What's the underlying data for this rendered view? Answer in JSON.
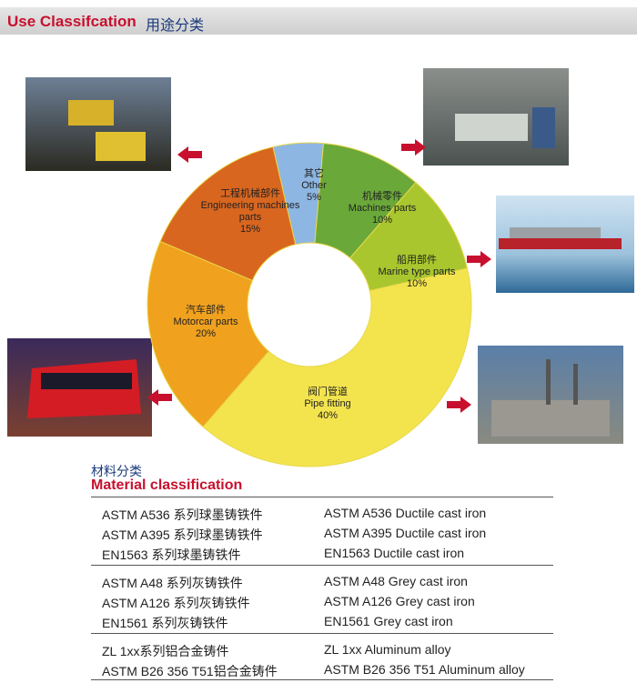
{
  "header": {
    "title_en": "Use Classifcation",
    "title_cn": "用途分类"
  },
  "chart_data": {
    "type": "pie",
    "categories": [
      "Other",
      "Machines parts",
      "Marine type parts",
      "Pipe fitting",
      "Motorcar parts",
      "Engineering machines parts"
    ],
    "categories_cn": [
      "其它",
      "机械零件",
      "船用部件",
      "阀门管道",
      "汽车部件",
      "工程机械部件"
    ],
    "values": [
      5,
      10,
      10,
      40,
      20,
      15
    ],
    "value_labels": [
      "5%",
      "10%",
      "10%",
      "40%",
      "20%",
      "15%"
    ],
    "colors": [
      "#8db6e2",
      "#6ba83a",
      "#a9c62e",
      "#f3e44e",
      "#f0a11e",
      "#d9661f"
    ]
  },
  "materials": {
    "title_cn": "材料分类",
    "title_en": "Material classification",
    "groups": [
      [
        [
          "ASTM A536 系列球墨铸铁件",
          "ASTM A536 Ductile cast iron"
        ],
        [
          "ASTM A395 系列球墨铸铁件",
          "ASTM A395 Ductile cast iron"
        ],
        [
          "EN1563  系列球墨铸铁件",
          "EN1563  Ductile cast iron"
        ]
      ],
      [
        [
          "ASTM A48  系列灰铸铁件",
          "ASTM A48 Grey cast iron"
        ],
        [
          "ASTM A126  系列灰铸铁件",
          "ASTM A126 Grey cast iron"
        ],
        [
          "EN1561  系列灰铸铁件",
          "EN1561 Grey cast iron"
        ]
      ],
      [
        [
          "ZL 1xx系列铝合金铸件",
          "ZL 1xx Aluminum alloy"
        ],
        [
          "ASTM B26 356 T51铝合金铸件",
          "ASTM B26 356 T51 Aluminum alloy"
        ]
      ]
    ]
  }
}
